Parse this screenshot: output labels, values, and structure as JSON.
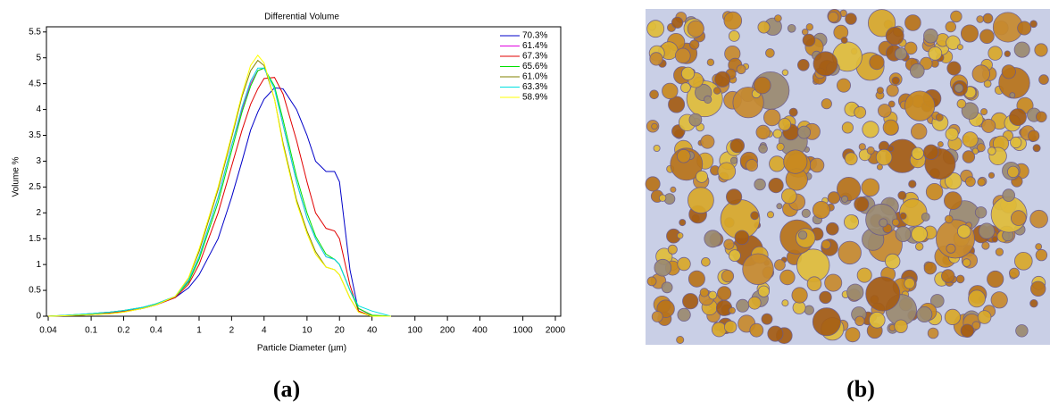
{
  "chart_data": {
    "type": "line",
    "title": "Differential Volume",
    "x_label": "Particle Diameter (µm)",
    "y_label": "Volume %",
    "xscale": "log",
    "x": [
      0.04,
      0.06,
      0.1,
      0.15,
      0.2,
      0.3,
      0.4,
      0.6,
      0.8,
      1,
      1.5,
      2,
      2.5,
      3,
      3.5,
      4,
      5,
      6,
      8,
      10,
      12,
      15,
      18,
      20,
      25,
      30,
      40,
      60
    ],
    "series": [
      {
        "name": "70.3%",
        "color": "#0000c8",
        "values": [
          0,
          0.01,
          0.03,
          0.06,
          0.09,
          0.15,
          0.22,
          0.36,
          0.55,
          0.8,
          1.5,
          2.3,
          3.0,
          3.6,
          3.95,
          4.2,
          4.42,
          4.4,
          4.0,
          3.5,
          3.0,
          2.8,
          2.8,
          2.6,
          0.9,
          0.1,
          0,
          0
        ]
      },
      {
        "name": "61.4%",
        "color": "#e000e0",
        "values": [
          0,
          0.02,
          0.05,
          0.08,
          0.11,
          0.17,
          0.24,
          0.38,
          0.68,
          1.15,
          2.3,
          3.3,
          4.0,
          4.5,
          4.75,
          4.8,
          4.4,
          3.7,
          2.6,
          1.9,
          1.5,
          1.15,
          1.1,
          1.0,
          0.5,
          0.15,
          0.02,
          0
        ]
      },
      {
        "name": "67.3%",
        "color": "#e00000",
        "values": [
          0,
          0.01,
          0.03,
          0.06,
          0.09,
          0.15,
          0.22,
          0.36,
          0.62,
          1.0,
          2.0,
          2.9,
          3.6,
          4.1,
          4.4,
          4.6,
          4.62,
          4.3,
          3.4,
          2.6,
          2.0,
          1.7,
          1.65,
          1.5,
          0.6,
          0.1,
          0,
          0
        ]
      },
      {
        "name": "65.6%",
        "color": "#00e000",
        "values": [
          0,
          0.02,
          0.05,
          0.08,
          0.11,
          0.17,
          0.24,
          0.38,
          0.66,
          1.1,
          2.2,
          3.2,
          3.95,
          4.45,
          4.75,
          4.8,
          4.45,
          3.8,
          2.7,
          2.0,
          1.55,
          1.2,
          1.1,
          1.0,
          0.5,
          0.15,
          0.02,
          0
        ]
      },
      {
        "name": "61.0%",
        "color": "#808000",
        "values": [
          0,
          0.01,
          0.03,
          0.05,
          0.08,
          0.15,
          0.22,
          0.38,
          0.74,
          1.25,
          2.45,
          3.45,
          4.25,
          4.75,
          4.95,
          4.85,
          4.2,
          3.35,
          2.25,
          1.65,
          1.25,
          0.95,
          0.9,
          0.8,
          0.35,
          0.08,
          0,
          0
        ]
      },
      {
        "name": "63.3%",
        "color": "#00e0e0",
        "values": [
          0,
          0.02,
          0.05,
          0.08,
          0.11,
          0.17,
          0.24,
          0.38,
          0.7,
          1.15,
          2.3,
          3.3,
          4.05,
          4.55,
          4.8,
          4.8,
          4.4,
          3.7,
          2.6,
          1.9,
          1.5,
          1.15,
          1.1,
          1.0,
          0.5,
          0.2,
          0.1,
          0
        ]
      },
      {
        "name": "58.9%",
        "color": "#ffff00",
        "values": [
          0,
          0.01,
          0.03,
          0.05,
          0.08,
          0.15,
          0.22,
          0.38,
          0.75,
          1.3,
          2.5,
          3.5,
          4.3,
          4.85,
          5.05,
          4.9,
          4.2,
          3.3,
          2.2,
          1.6,
          1.2,
          0.95,
          0.9,
          0.8,
          0.35,
          0.08,
          0,
          0
        ]
      }
    ],
    "xlim": [
      0.04,
      2000
    ],
    "ylim": [
      0,
      5.6
    ],
    "xticks": [
      0.04,
      0.1,
      0.2,
      0.4,
      1,
      2,
      4,
      10,
      20,
      40,
      100,
      200,
      400,
      1000,
      2000
    ],
    "yticks": [
      0,
      0.5,
      1,
      1.5,
      2,
      2.5,
      3,
      3.5,
      4,
      4.5,
      5,
      5.5
    ],
    "legend": "top-right"
  },
  "panel_labels": [
    "(a)",
    "(b)"
  ]
}
